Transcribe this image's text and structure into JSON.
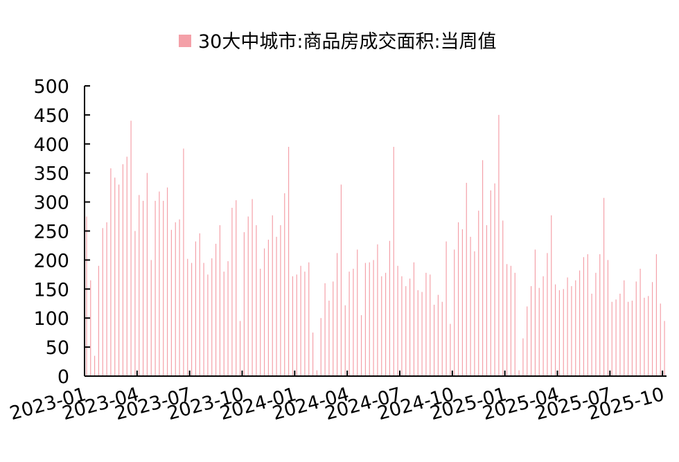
{
  "chart_data": {
    "type": "bar",
    "legend": {
      "position": "top",
      "entries": [
        {
          "name": "30大中城市:商品房成交面积:当周值",
          "color": "#f4a0a8"
        }
      ]
    },
    "series": [
      {
        "name": "30大中城市:商品房成交面积:当周值",
        "color": "#f4a0a8",
        "values": [
          275,
          165,
          35,
          190,
          255,
          265,
          358,
          342,
          330,
          365,
          378,
          440,
          250,
          312,
          302,
          350,
          200,
          302,
          318,
          302,
          325,
          252,
          265,
          270,
          392,
          202,
          195,
          232,
          246,
          195,
          175,
          203,
          228,
          260,
          180,
          198,
          290,
          303,
          95,
          248,
          275,
          305,
          260,
          185,
          220,
          235,
          277,
          240,
          260,
          315,
          395,
          172,
          175,
          190,
          180,
          196,
          75,
          10,
          100,
          160,
          130,
          163,
          212,
          330,
          122,
          180,
          185,
          218,
          105,
          195,
          196,
          200,
          227,
          172,
          178,
          233,
          395,
          190,
          172,
          155,
          168,
          196,
          148,
          145,
          178,
          175,
          123,
          140,
          128,
          232,
          90,
          218,
          265,
          253,
          333,
          240,
          215,
          285,
          372,
          260,
          320,
          332,
          450,
          268,
          193,
          190,
          178,
          10,
          65,
          120,
          155,
          218,
          152,
          172,
          212,
          277,
          158,
          148,
          150,
          170,
          155,
          165,
          182,
          205,
          210,
          142,
          178,
          210,
          307,
          200,
          128,
          132,
          142,
          165,
          128,
          130,
          163,
          185,
          135,
          138,
          162,
          210,
          125,
          95
        ]
      }
    ],
    "x_ticks": [
      "2023-01",
      "2023-04",
      "2023-07",
      "2023-10",
      "2024-01",
      "2024-04",
      "2024-07",
      "2024-10",
      "2025-01",
      "2025-04",
      "2025-07",
      "2025-10"
    ],
    "x_tick_weeks": [
      0,
      13,
      26,
      39,
      52,
      65,
      78,
      91,
      104,
      117,
      130,
      143
    ],
    "y_ticks": [
      0,
      50,
      100,
      150,
      200,
      250,
      300,
      350,
      400,
      450,
      500
    ],
    "ylim": [
      0,
      500
    ],
    "grid": false
  }
}
